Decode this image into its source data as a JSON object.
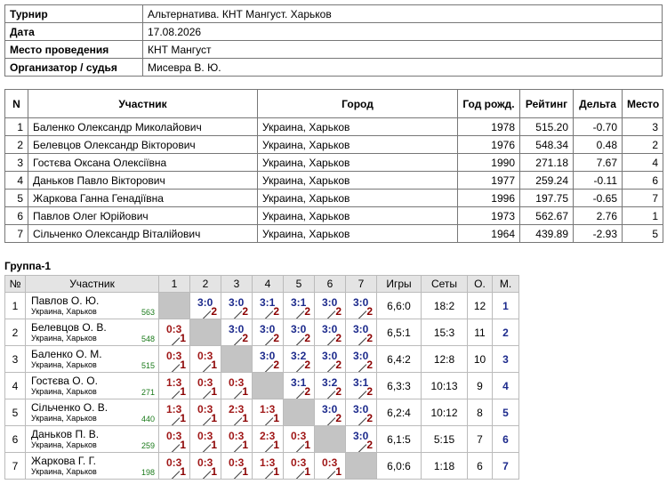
{
  "info": {
    "rows": [
      [
        "Турнир",
        "Альтернатива. КНТ Мангуст. Харьков"
      ],
      [
        "Дата",
        "17.08.2026"
      ],
      [
        "Место проведения",
        "КНТ Мангуст"
      ],
      [
        "Организатор / судья",
        "Мисевра В. Ю."
      ]
    ]
  },
  "participants": {
    "headers": [
      "N",
      "Участник",
      "Город",
      "Год рожд.",
      "Рейтинг",
      "Дельта",
      "Место"
    ],
    "rows": [
      [
        "1",
        "Баленко Олександр Миколайович",
        "Украина, Харьков",
        "1978",
        "515.20",
        "-0.70",
        "3"
      ],
      [
        "2",
        "Белевцов Олександр Вікторович",
        "Украина, Харьков",
        "1976",
        "548.34",
        "0.48",
        "2"
      ],
      [
        "3",
        "Гостєва Оксана Олексіївна",
        "Украина, Харьков",
        "1990",
        "271.18",
        "7.67",
        "4"
      ],
      [
        "4",
        "Даньков Павло Вікторович",
        "Украина, Харьков",
        "1977",
        "259.24",
        "-0.11",
        "6"
      ],
      [
        "5",
        "Жаркова Ганна Генадіївна",
        "Украина, Харьков",
        "1996",
        "197.75",
        "-0.65",
        "7"
      ],
      [
        "6",
        "Павлов Олег Юрійович",
        "Украина, Харьков",
        "1973",
        "562.67",
        "2.76",
        "1"
      ],
      [
        "7",
        "Сільченко Олександр Віталійович",
        "Украина, Харьков",
        "1964",
        "439.89",
        "-2.93",
        "5"
      ]
    ]
  },
  "group": {
    "title": "Группа-1",
    "headers": [
      "№",
      "Участник",
      "1",
      "2",
      "3",
      "4",
      "5",
      "6",
      "7",
      "Игры",
      "Сеты",
      "О.",
      "М."
    ],
    "rows": [
      {
        "num": "1",
        "name": "Павлов О. Ю.",
        "city": "Украина, Харьков",
        "rating": "563",
        "cells": [
          null,
          {
            "score": "3:0",
            "pts": "2"
          },
          {
            "score": "3:0",
            "pts": "2"
          },
          {
            "score": "3:1",
            "pts": "2"
          },
          {
            "score": "3:1",
            "pts": "2"
          },
          {
            "score": "3:0",
            "pts": "2"
          },
          {
            "score": "3:0",
            "pts": "2"
          }
        ],
        "games": "6,6:0",
        "sets": "18:2",
        "points": "12",
        "place": "1"
      },
      {
        "num": "2",
        "name": "Белевцов О. В.",
        "city": "Украина, Харьков",
        "rating": "548",
        "cells": [
          {
            "score": "0:3",
            "pts": "1"
          },
          null,
          {
            "score": "3:0",
            "pts": "2"
          },
          {
            "score": "3:0",
            "pts": "2"
          },
          {
            "score": "3:0",
            "pts": "2"
          },
          {
            "score": "3:0",
            "pts": "2"
          },
          {
            "score": "3:0",
            "pts": "2"
          }
        ],
        "games": "6,5:1",
        "sets": "15:3",
        "points": "11",
        "place": "2"
      },
      {
        "num": "3",
        "name": "Баленко О. М.",
        "city": "Украина, Харьков",
        "rating": "515",
        "cells": [
          {
            "score": "0:3",
            "pts": "1"
          },
          {
            "score": "0:3",
            "pts": "1"
          },
          null,
          {
            "score": "3:0",
            "pts": "2"
          },
          {
            "score": "3:2",
            "pts": "2"
          },
          {
            "score": "3:0",
            "pts": "2"
          },
          {
            "score": "3:0",
            "pts": "2"
          }
        ],
        "games": "6,4:2",
        "sets": "12:8",
        "points": "10",
        "place": "3"
      },
      {
        "num": "4",
        "name": "Гостєва О. О.",
        "city": "Украина, Харьков",
        "rating": "271",
        "cells": [
          {
            "score": "1:3",
            "pts": "1"
          },
          {
            "score": "0:3",
            "pts": "1"
          },
          {
            "score": "0:3",
            "pts": "1"
          },
          null,
          {
            "score": "3:1",
            "pts": "2"
          },
          {
            "score": "3:2",
            "pts": "2"
          },
          {
            "score": "3:1",
            "pts": "2"
          }
        ],
        "games": "6,3:3",
        "sets": "10:13",
        "points": "9",
        "place": "4"
      },
      {
        "num": "5",
        "name": "Сільченко О. В.",
        "city": "Украина, Харьков",
        "rating": "440",
        "cells": [
          {
            "score": "1:3",
            "pts": "1"
          },
          {
            "score": "0:3",
            "pts": "1"
          },
          {
            "score": "2:3",
            "pts": "1"
          },
          {
            "score": "1:3",
            "pts": "1"
          },
          null,
          {
            "score": "3:0",
            "pts": "2"
          },
          {
            "score": "3:0",
            "pts": "2"
          }
        ],
        "games": "6,2:4",
        "sets": "10:12",
        "points": "8",
        "place": "5"
      },
      {
        "num": "6",
        "name": "Даньков П. В.",
        "city": "Украина, Харьков",
        "rating": "259",
        "cells": [
          {
            "score": "0:3",
            "pts": "1"
          },
          {
            "score": "0:3",
            "pts": "1"
          },
          {
            "score": "0:3",
            "pts": "1"
          },
          {
            "score": "2:3",
            "pts": "1"
          },
          {
            "score": "0:3",
            "pts": "1"
          },
          null,
          {
            "score": "3:0",
            "pts": "2"
          }
        ],
        "games": "6,1:5",
        "sets": "5:15",
        "points": "7",
        "place": "6"
      },
      {
        "num": "7",
        "name": "Жаркова Г. Г.",
        "city": "Украина, Харьков",
        "rating": "198",
        "cells": [
          {
            "score": "0:3",
            "pts": "1"
          },
          {
            "score": "0:3",
            "pts": "1"
          },
          {
            "score": "0:3",
            "pts": "1"
          },
          {
            "score": "1:3",
            "pts": "1"
          },
          {
            "score": "0:3",
            "pts": "1"
          },
          {
            "score": "0:3",
            "pts": "1"
          },
          null
        ],
        "games": "6,0:6",
        "sets": "1:18",
        "points": "6",
        "place": "7"
      }
    ]
  }
}
